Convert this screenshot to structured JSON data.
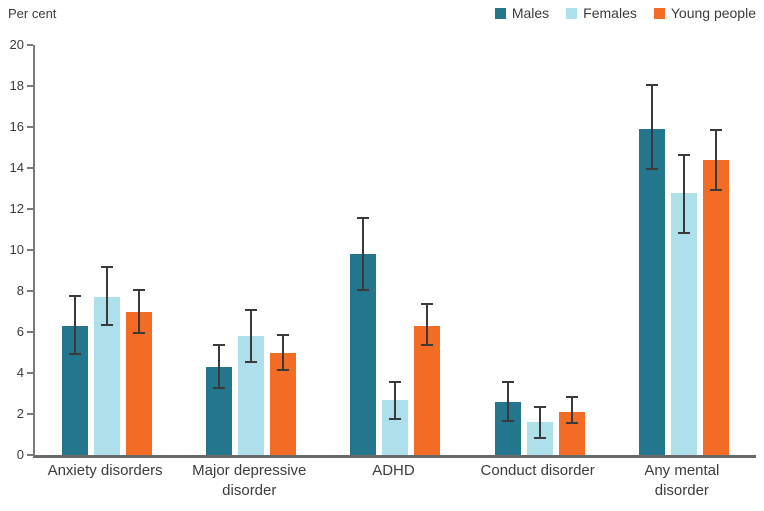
{
  "chart_data": {
    "type": "bar",
    "title": "",
    "ylabel": "Per cent",
    "xlabel": "",
    "ylim": [
      0,
      20
    ],
    "yticks": [
      0,
      2,
      4,
      6,
      8,
      10,
      12,
      14,
      16,
      18,
      20
    ],
    "grid": false,
    "legend_position": "top-right",
    "error_bars": true,
    "categories": [
      "Anxiety disorders",
      "Major depressive disorder",
      "ADHD",
      "Conduct disorder",
      "Any mental disorder"
    ],
    "series": [
      {
        "name": "Males",
        "color": "#23768C",
        "values": [
          6.3,
          4.3,
          9.8,
          2.6,
          15.9
        ],
        "ci_low": [
          4.9,
          3.2,
          8.0,
          1.6,
          13.9
        ],
        "ci_high": [
          7.8,
          5.4,
          11.6,
          3.6,
          18.1
        ]
      },
      {
        "name": "Females",
        "color": "#AEE0EB",
        "values": [
          7.7,
          5.8,
          2.7,
          1.6,
          12.8
        ],
        "ci_low": [
          6.3,
          4.5,
          1.7,
          0.8,
          10.8
        ],
        "ci_high": [
          9.2,
          7.1,
          3.6,
          2.4,
          14.7
        ]
      },
      {
        "name": "Young people",
        "color": "#F26C25",
        "values": [
          7.0,
          5.0,
          6.3,
          2.1,
          14.4
        ],
        "ci_low": [
          5.9,
          4.1,
          5.3,
          1.5,
          12.9
        ],
        "ci_high": [
          8.1,
          5.9,
          7.4,
          2.9,
          15.9
        ]
      }
    ],
    "colors": {
      "axis_line": "#7a7a7a",
      "baseline": "#696969",
      "error_bar": "#3a3a3a",
      "text": "#3c3c3c",
      "background": "#ffffff"
    }
  }
}
